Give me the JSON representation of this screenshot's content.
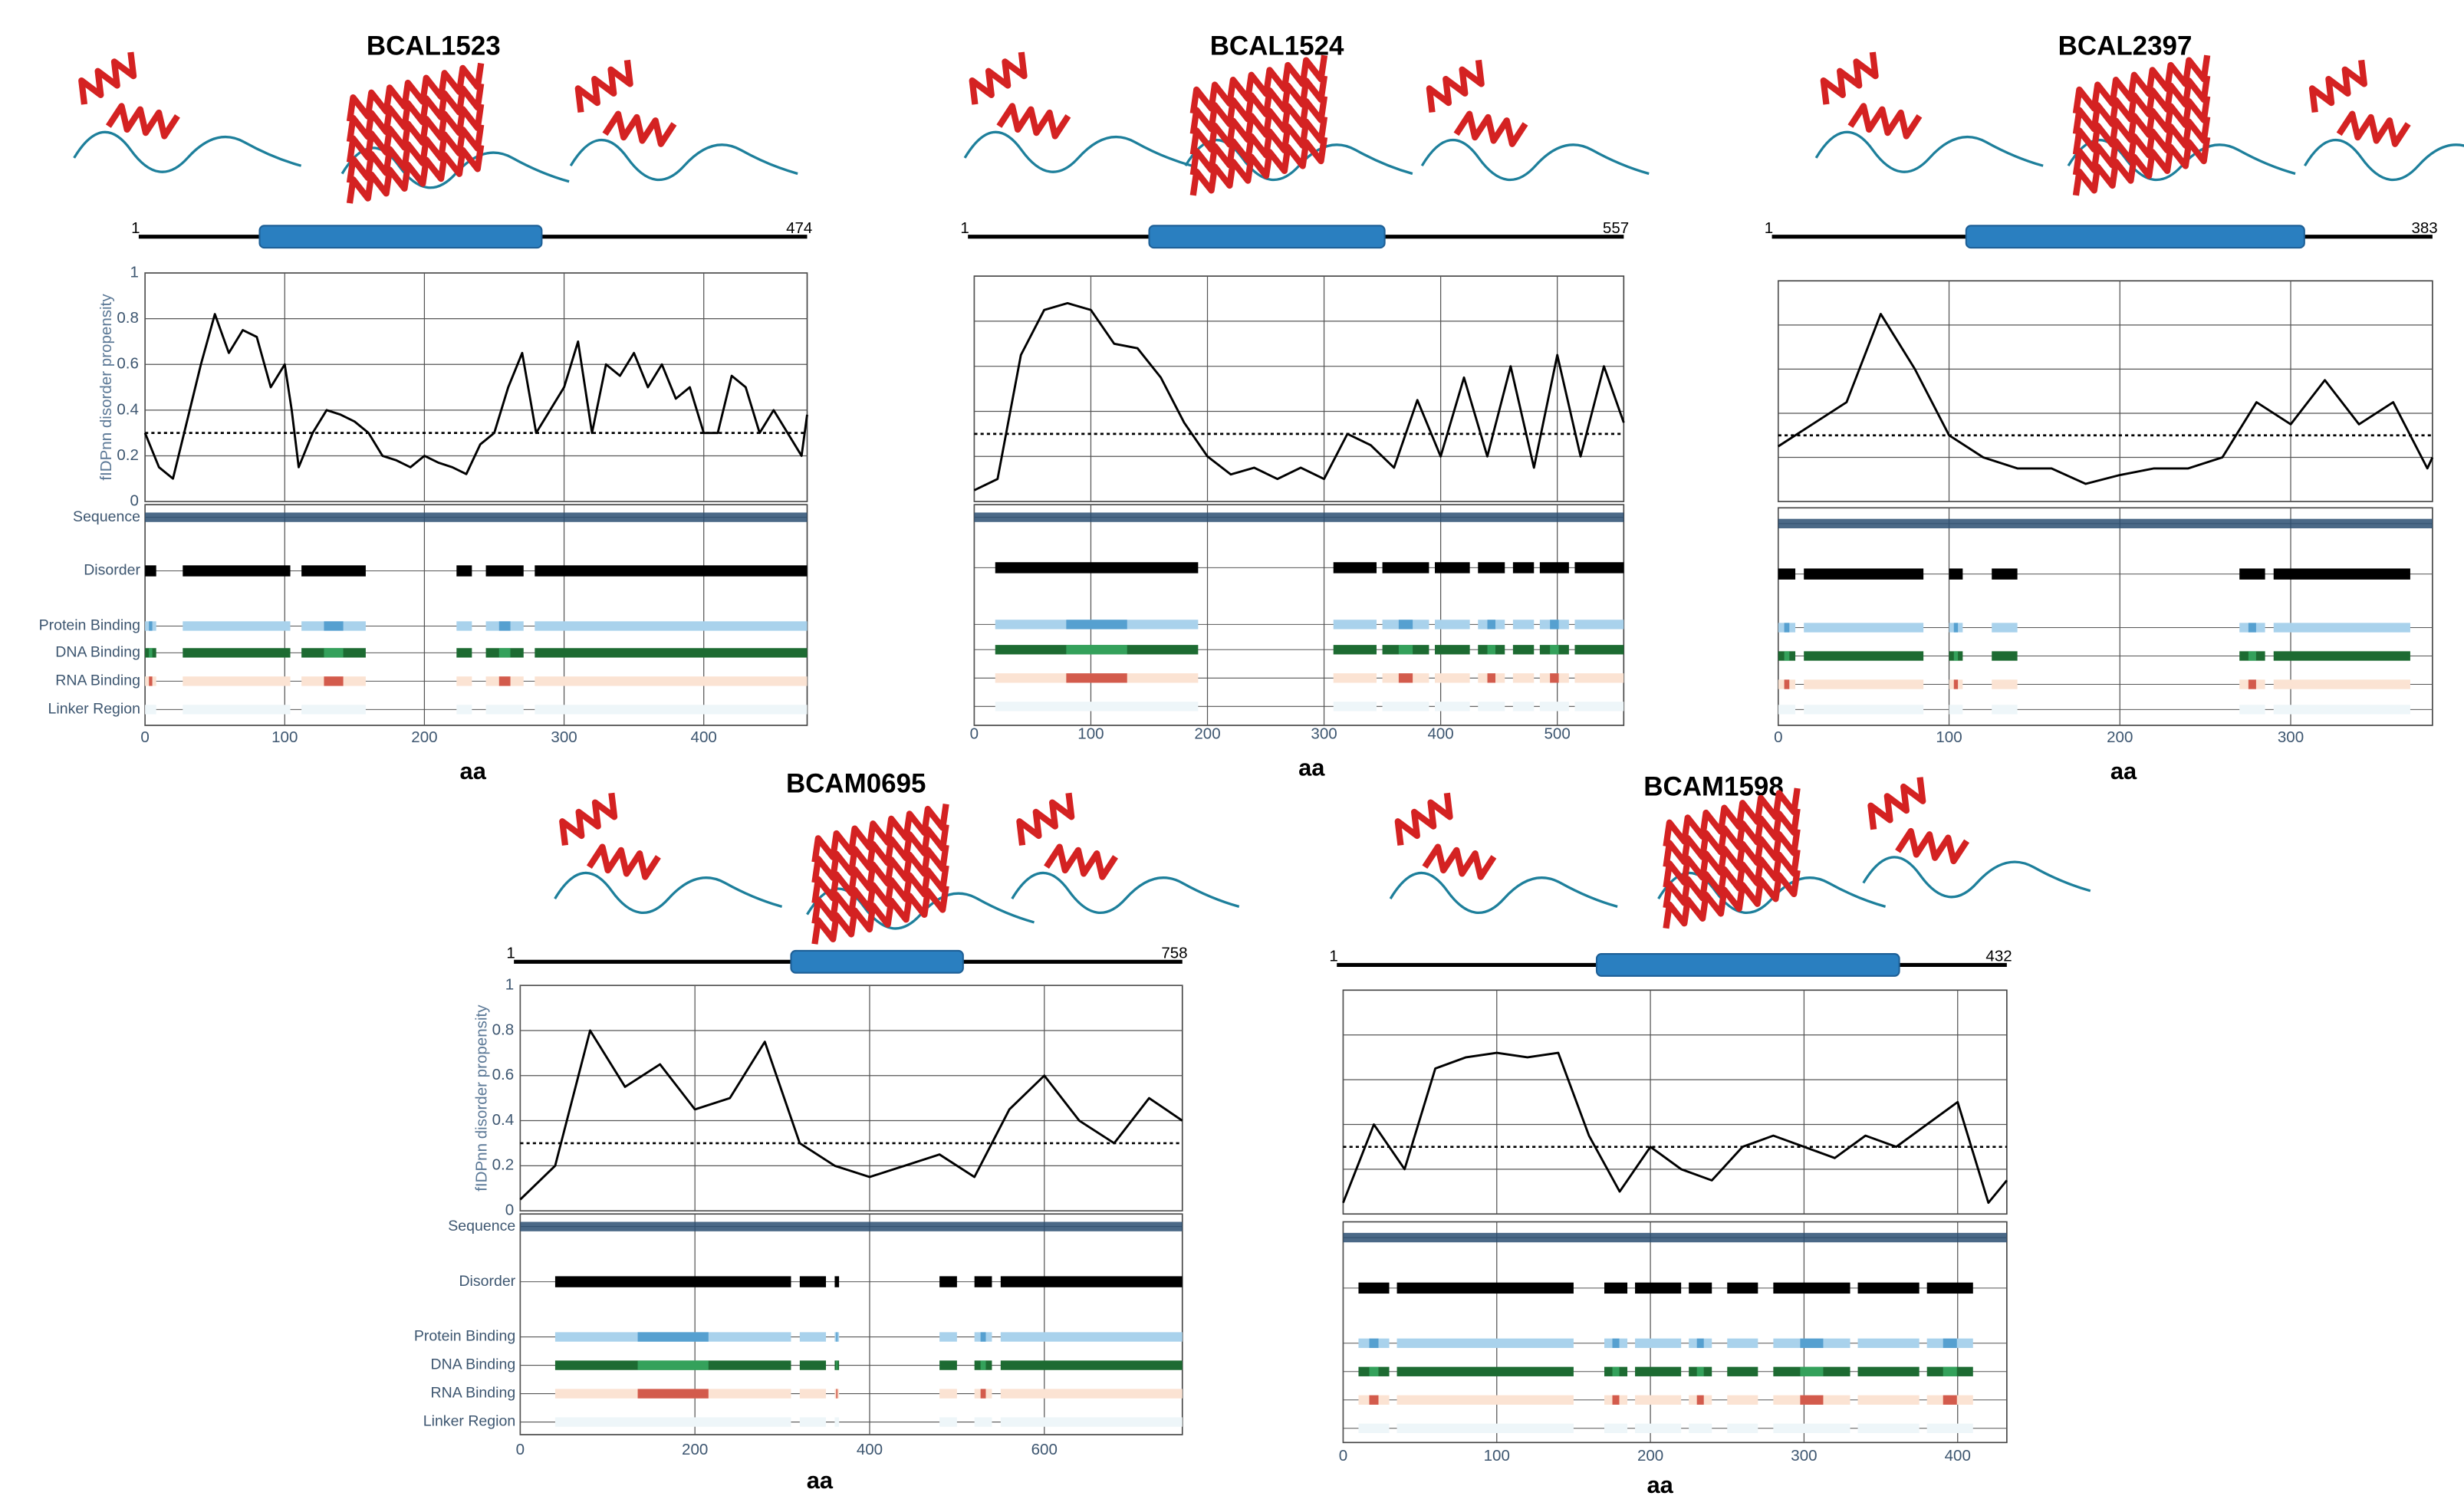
{
  "chart_data": [
    {
      "type": "line",
      "title": "BCAL1523",
      "seq_start": 1,
      "length": 474,
      "domain": [
        82,
        284
      ],
      "xlabel": "aa",
      "ylabel": "fIDPnn disorder propensity",
      "xlim": [
        0,
        474
      ],
      "xticks": [
        0,
        100,
        200,
        300,
        400
      ],
      "ylim": [
        0,
        1
      ],
      "yticks": [
        0,
        0.2,
        0.4,
        0.6,
        0.8,
        1
      ],
      "threshold": 0.3,
      "tracks": [
        "Sequence",
        "Disorder",
        "Protein Binding",
        "DNA Binding",
        "RNA Binding",
        "Linker Region"
      ],
      "disorder": [
        [
          0,
          8
        ],
        [
          27,
          104
        ],
        [
          112,
          158
        ],
        [
          223,
          234
        ],
        [
          244,
          271
        ],
        [
          279,
          474
        ]
      ],
      "series": [
        {
          "color": "#000000",
          "x": [
            0,
            10,
            20,
            30,
            40,
            50,
            60,
            70,
            80,
            90,
            100,
            105,
            110,
            120,
            130,
            140,
            150,
            160,
            170,
            180,
            190,
            200,
            210,
            220,
            230,
            240,
            250,
            260,
            270,
            280,
            290,
            300,
            310,
            320,
            330,
            340,
            350,
            360,
            370,
            380,
            390,
            400,
            410,
            420,
            430,
            440,
            450,
            460,
            470,
            474
          ],
          "values": [
            0.3,
            0.15,
            0.1,
            0.35,
            0.6,
            0.82,
            0.65,
            0.75,
            0.72,
            0.5,
            0.6,
            0.4,
            0.15,
            0.3,
            0.4,
            0.38,
            0.35,
            0.3,
            0.2,
            0.18,
            0.15,
            0.2,
            0.17,
            0.15,
            0.12,
            0.25,
            0.3,
            0.5,
            0.65,
            0.3,
            0.4,
            0.5,
            0.7,
            0.3,
            0.6,
            0.55,
            0.65,
            0.5,
            0.6,
            0.45,
            0.5,
            0.3,
            0.3,
            0.55,
            0.5,
            0.3,
            0.4,
            0.3,
            0.2,
            0.38
          ]
        }
      ]
    },
    {
      "type": "line",
      "title": "BCAL1524",
      "seq_start": 1,
      "length": 557,
      "domain": [
        150,
        352
      ],
      "xlabel": "aa",
      "xlim": [
        0,
        557
      ],
      "xticks": [
        0,
        100,
        200,
        300,
        400,
        500
      ],
      "ylim": [
        0,
        1
      ],
      "ygrid": [
        0.2,
        0.4,
        0.6,
        0.8
      ],
      "threshold": 0.3,
      "disorder": [
        [
          18,
          192
        ],
        [
          308,
          345
        ],
        [
          350,
          390
        ],
        [
          395,
          425
        ],
        [
          432,
          455
        ],
        [
          462,
          480
        ],
        [
          485,
          510
        ],
        [
          515,
          557
        ]
      ],
      "series": [
        {
          "color": "#000000",
          "x": [
            0,
            20,
            40,
            60,
            80,
            100,
            120,
            140,
            160,
            180,
            200,
            220,
            240,
            260,
            280,
            300,
            320,
            340,
            360,
            380,
            400,
            420,
            440,
            460,
            480,
            500,
            520,
            540,
            557
          ],
          "values": [
            0.05,
            0.1,
            0.65,
            0.85,
            0.88,
            0.85,
            0.7,
            0.68,
            0.55,
            0.35,
            0.2,
            0.12,
            0.15,
            0.1,
            0.15,
            0.1,
            0.3,
            0.25,
            0.15,
            0.45,
            0.2,
            0.55,
            0.2,
            0.6,
            0.15,
            0.65,
            0.2,
            0.6,
            0.35
          ]
        }
      ]
    },
    {
      "type": "line",
      "title": "BCAL2397",
      "seq_start": 1,
      "length": 383,
      "domain": [
        110,
        308
      ],
      "xlabel": "aa",
      "xlim": [
        0,
        383
      ],
      "xticks": [
        0,
        100,
        200,
        300
      ],
      "ylim": [
        0,
        1
      ],
      "ygrid": [
        0.2,
        0.4,
        0.6,
        0.8
      ],
      "threshold": 0.3,
      "disorder": [
        [
          0,
          10
        ],
        [
          15,
          85
        ],
        [
          100,
          108
        ],
        [
          125,
          140
        ],
        [
          270,
          285
        ],
        [
          290,
          370
        ]
      ],
      "series": [
        {
          "color": "#000000",
          "x": [
            0,
            20,
            40,
            60,
            80,
            100,
            120,
            140,
            160,
            180,
            200,
            220,
            240,
            260,
            280,
            300,
            320,
            340,
            360,
            380,
            383
          ],
          "values": [
            0.25,
            0.35,
            0.45,
            0.85,
            0.6,
            0.3,
            0.2,
            0.15,
            0.15,
            0.08,
            0.12,
            0.15,
            0.15,
            0.2,
            0.45,
            0.35,
            0.55,
            0.35,
            0.45,
            0.15,
            0.2
          ]
        }
      ]
    },
    {
      "type": "line",
      "title": "BCAM0695",
      "seq_start": 1,
      "length": 758,
      "domain": [
        310,
        507
      ],
      "xlabel": "aa",
      "ylabel": "fIDPnn disorder propensity",
      "xlim": [
        0,
        758
      ],
      "xticks": [
        0,
        200,
        400,
        600
      ],
      "ylim": [
        0,
        1
      ],
      "yticks": [
        0,
        0.2,
        0.4,
        0.6,
        0.8,
        1
      ],
      "threshold": 0.3,
      "tracks": [
        "Sequence",
        "Disorder",
        "Protein Binding",
        "DNA Binding",
        "RNA Binding",
        "Linker Region"
      ],
      "disorder": [
        [
          40,
          310
        ],
        [
          320,
          350
        ],
        [
          360,
          365
        ],
        [
          480,
          500
        ],
        [
          520,
          540
        ],
        [
          550,
          758
        ]
      ],
      "series": [
        {
          "color": "#000000",
          "x": [
            0,
            40,
            80,
            120,
            160,
            200,
            240,
            280,
            320,
            360,
            400,
            440,
            480,
            520,
            560,
            600,
            640,
            680,
            720,
            758
          ],
          "values": [
            0.05,
            0.2,
            0.8,
            0.55,
            0.65,
            0.45,
            0.5,
            0.75,
            0.3,
            0.2,
            0.15,
            0.2,
            0.25,
            0.15,
            0.45,
            0.6,
            0.4,
            0.3,
            0.5,
            0.4
          ]
        }
      ]
    },
    {
      "type": "line",
      "title": "BCAM1598",
      "seq_start": 1,
      "length": 432,
      "domain": [
        165,
        362
      ],
      "xlabel": "aa",
      "xlim": [
        0,
        432
      ],
      "xticks": [
        0,
        100,
        200,
        300,
        400
      ],
      "ylim": [
        0,
        1
      ],
      "ygrid": [
        0.2,
        0.4,
        0.6,
        0.8
      ],
      "threshold": 0.3,
      "disorder": [
        [
          10,
          30
        ],
        [
          35,
          150
        ],
        [
          170,
          185
        ],
        [
          190,
          220
        ],
        [
          225,
          240
        ],
        [
          250,
          270
        ],
        [
          280,
          330
        ],
        [
          335,
          375
        ],
        [
          380,
          410
        ]
      ],
      "series": [
        {
          "color": "#000000",
          "x": [
            0,
            20,
            40,
            60,
            80,
            100,
            120,
            140,
            160,
            180,
            200,
            220,
            240,
            260,
            280,
            300,
            320,
            340,
            360,
            380,
            400,
            420,
            432
          ],
          "values": [
            0.05,
            0.4,
            0.2,
            0.65,
            0.7,
            0.72,
            0.7,
            0.72,
            0.35,
            0.1,
            0.3,
            0.2,
            0.15,
            0.3,
            0.35,
            0.3,
            0.25,
            0.35,
            0.3,
            0.4,
            0.5,
            0.05,
            0.15
          ]
        }
      ]
    }
  ]
}
